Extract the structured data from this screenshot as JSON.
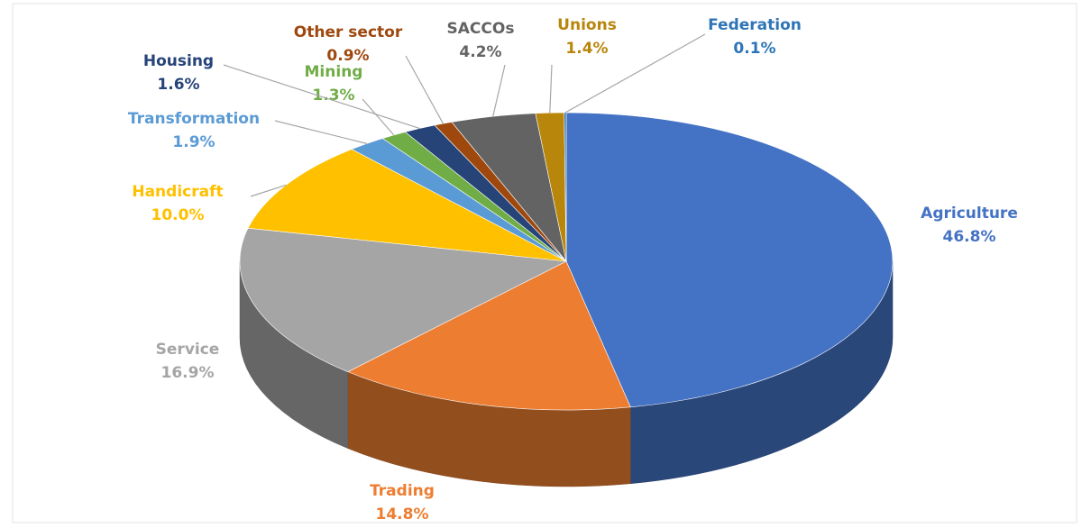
{
  "chart_data": {
    "type": "pie3d",
    "categories": [
      "Agriculture",
      "Trading",
      "Service",
      "Handicraft",
      "Transformation",
      "Mining",
      "Housing",
      "Other sector",
      "SACCOs",
      "Unions",
      "Federation"
    ],
    "values": [
      46.8,
      14.8,
      16.9,
      10.0,
      1.9,
      1.3,
      1.6,
      0.9,
      4.2,
      1.4,
      0.1
    ],
    "value_labels": [
      "46.8%",
      "14.8%",
      "16.9%",
      "10.0%",
      "1.9%",
      "1.3%",
      "1.6%",
      "0.9%",
      "4.2%",
      "1.4%",
      "0.1%"
    ],
    "colors": [
      "#4472c4",
      "#ed7d31",
      "#a5a5a5",
      "#ffc000",
      "#5b9bd5",
      "#70ad47",
      "#264478",
      "#9e480e",
      "#636363",
      "#b8860b",
      "#2e75b6"
    ]
  }
}
